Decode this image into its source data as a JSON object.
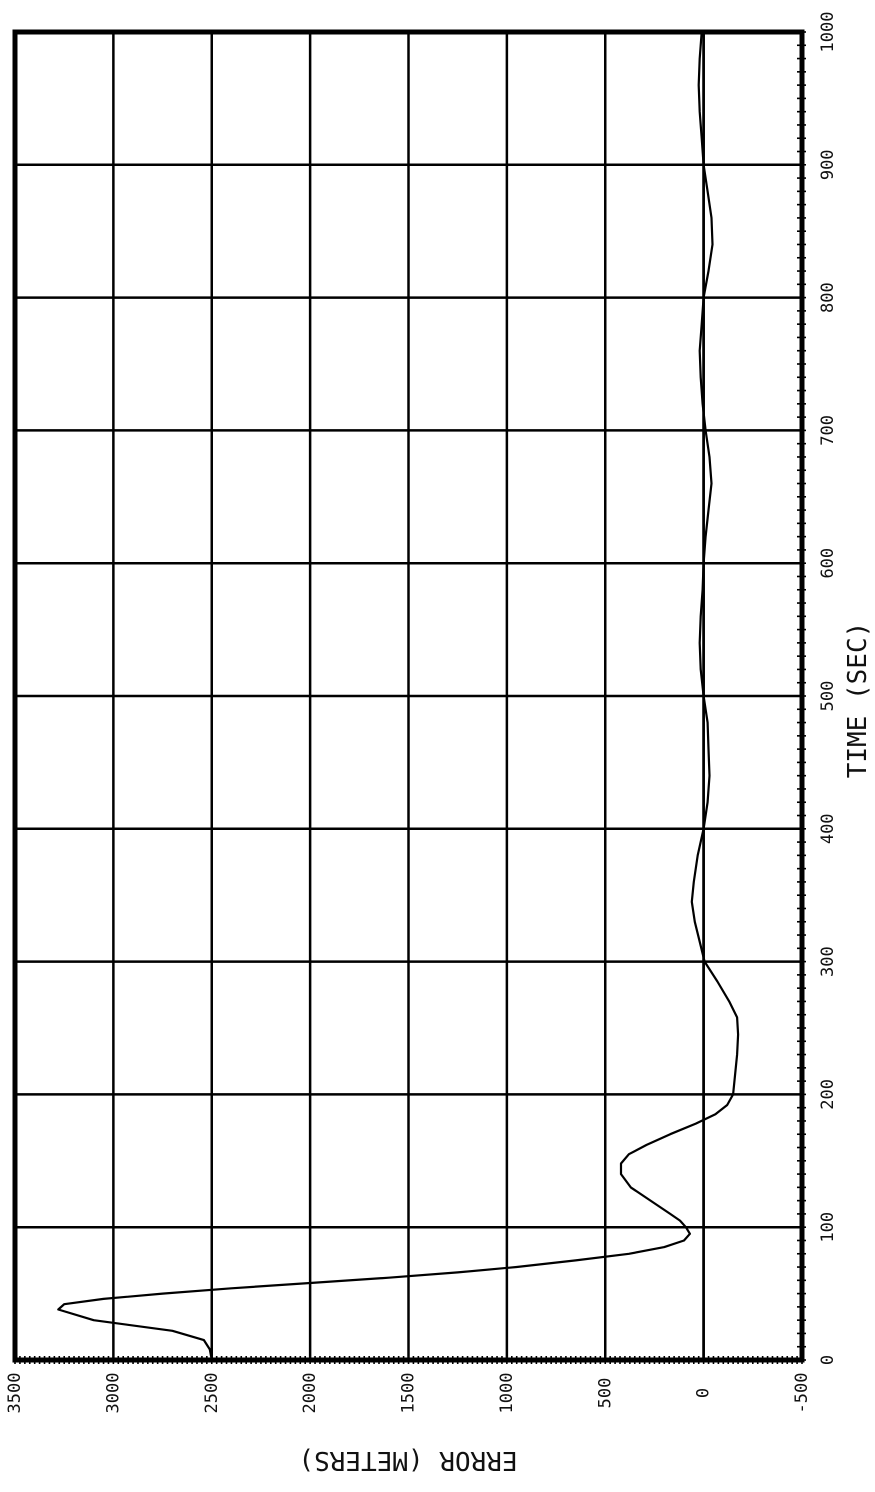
{
  "chart_data": {
    "type": "line",
    "orientation": "rotated-90-ccw",
    "xlabel": "TIME (SEC)",
    "ylabel": "ERROR (METERS)",
    "xlim": [
      0,
      1000
    ],
    "ylim": [
      -500,
      3500
    ],
    "x_ticks": [
      "0",
      "100",
      "200",
      "300",
      "400",
      "500",
      "600",
      "700",
      "800",
      "900",
      "1000"
    ],
    "y_ticks": [
      "-500",
      "0",
      "500",
      "1000",
      "1500",
      "2000",
      "2500",
      "3000",
      "3500"
    ],
    "grid": true,
    "x_tick_values": [
      0,
      100,
      200,
      300,
      400,
      500,
      600,
      700,
      800,
      900,
      1000
    ],
    "y_tick_values": [
      -500,
      0,
      500,
      1000,
      1500,
      2000,
      2500,
      3000,
      3500
    ],
    "series": [
      {
        "x": [
          0,
          8,
          15,
          22,
          30,
          38,
          42,
          46,
          50,
          54,
          58,
          62,
          66,
          70,
          75,
          80,
          85,
          90,
          95,
          100,
          105,
          110,
          120,
          130,
          140,
          148,
          155,
          162,
          170,
          178,
          185,
          192,
          200,
          215,
          230,
          245,
          258,
          270,
          285,
          300,
          315,
          330,
          345,
          360,
          380,
          400,
          420,
          440,
          460,
          480,
          500,
          520,
          540,
          560,
          580,
          600,
          620,
          640,
          660,
          680,
          700,
          720,
          740,
          760,
          780,
          800,
          820,
          840,
          860,
          880,
          900,
          920,
          940,
          960,
          980,
          1000
        ],
        "y": [
          2500,
          2510,
          2540,
          2700,
          3100,
          3280,
          3250,
          3050,
          2750,
          2400,
          2000,
          1600,
          1250,
          950,
          650,
          380,
          200,
          100,
          70,
          90,
          120,
          170,
          270,
          370,
          420,
          420,
          380,
          290,
          170,
          40,
          -60,
          -120,
          -150,
          -160,
          -170,
          -175,
          -170,
          -130,
          -70,
          -5,
          20,
          45,
          60,
          50,
          30,
          0,
          -20,
          -30,
          -25,
          -20,
          0,
          15,
          20,
          15,
          5,
          0,
          -10,
          -25,
          -40,
          -30,
          -10,
          5,
          15,
          20,
          10,
          0,
          -25,
          -45,
          -40,
          -20,
          0,
          10,
          20,
          25,
          20,
          10
        ]
      },
      {
        "x": [
          0,
          100,
          200,
          300,
          400,
          500,
          600,
          700,
          800,
          900,
          1000
        ],
        "y": [
          0,
          0,
          0,
          0,
          0,
          0,
          0,
          0,
          0,
          0,
          0
        ]
      }
    ]
  }
}
